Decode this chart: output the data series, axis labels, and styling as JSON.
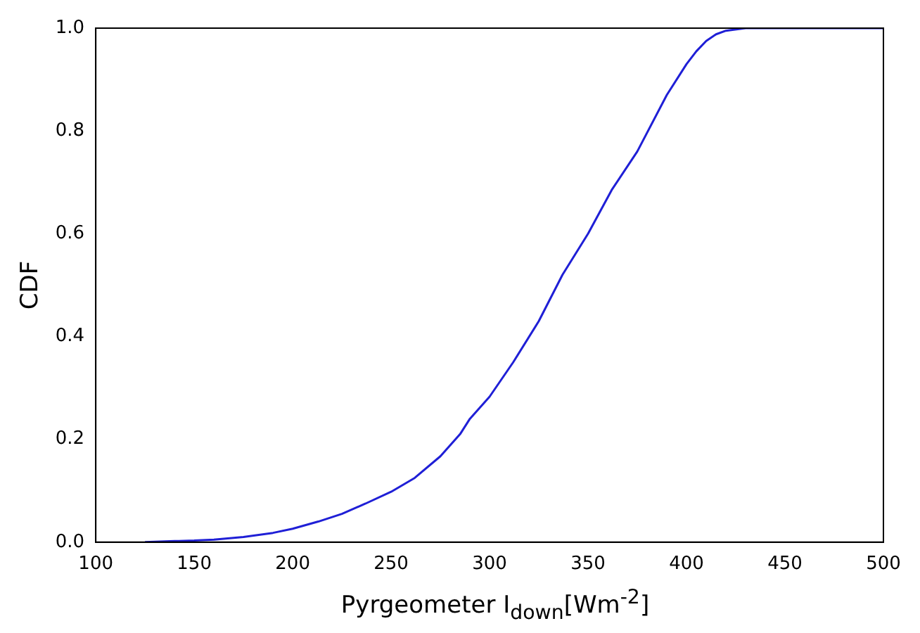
{
  "chart_data": {
    "type": "line",
    "xlabel": "Pyrgeometer I$_{down}$[Wm$^{-2}$]",
    "ylabel": "CDF",
    "x": [
      125,
      140,
      150,
      160,
      175,
      190,
      200,
      213,
      225,
      237,
      250,
      262,
      275,
      285,
      290,
      300,
      312,
      325,
      337,
      350,
      362,
      375,
      390,
      400,
      405,
      410,
      415,
      420,
      430,
      450,
      500
    ],
    "series": [
      {
        "color": "#1f1fd6",
        "values": [
          0,
          0.002,
          0.003,
          0.005,
          0.01,
          0.018,
          0.026,
          0.04,
          0.055,
          0.075,
          0.098,
          0.125,
          0.167,
          0.21,
          0.24,
          0.283,
          0.35,
          0.43,
          0.52,
          0.6,
          0.685,
          0.76,
          0.87,
          0.93,
          0.955,
          0.975,
          0.988,
          0.995,
          1,
          1,
          1
        ]
      }
    ],
    "xlim": [
      100,
      500
    ],
    "xticks": [
      100,
      150,
      200,
      250,
      300,
      350,
      400,
      450,
      500
    ],
    "ylim": [
      0,
      1
    ],
    "yticks": [
      {
        "value": 0,
        "label": "0.0"
      },
      {
        "value": 0.2,
        "label": "0.2"
      },
      {
        "value": 0.4,
        "label": "0.4"
      },
      {
        "value": 0.6,
        "label": "0.6"
      },
      {
        "value": 0.8,
        "label": "0.8"
      },
      {
        "value": 1,
        "label": "1.0"
      }
    ],
    "grid": false,
    "legend": false,
    "marker": "none",
    "line_style": "solid"
  }
}
